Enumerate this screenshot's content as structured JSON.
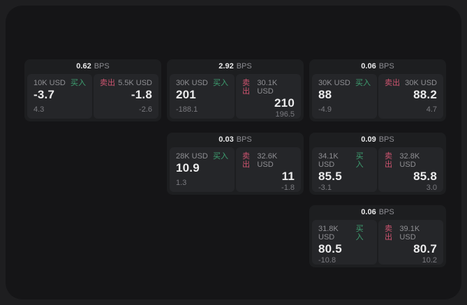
{
  "page": {
    "bg_outer": "#1e1e20",
    "bg_surface": "#151517"
  },
  "colors": {
    "card_bg": "#1d1e20",
    "panel_bg": "#252629",
    "text_primary": "#ebebec",
    "text_muted": "#8f8f93",
    "text_sub": "#7b7b80",
    "buy_green": "#3ea071",
    "sell_red": "#ce5470"
  },
  "labels": {
    "bps_suffix": "BPS",
    "buy": "买入",
    "sell": "卖出"
  },
  "cards": [
    {
      "col": 1,
      "row": 1,
      "bps": "0.62",
      "buy": {
        "size": "10K USD",
        "value": "-3.7",
        "sub": "4.3"
      },
      "sell": {
        "size": "5.5K USD",
        "value": "-1.8",
        "sub": "-2.6"
      }
    },
    {
      "col": 2,
      "row": 1,
      "bps": "2.92",
      "buy": {
        "size": "30K USD",
        "value": "201",
        "sub": "-188.1"
      },
      "sell": {
        "size": "30.1K USD",
        "value": "210",
        "sub": "196.5"
      }
    },
    {
      "col": 3,
      "row": 1,
      "bps": "0.06",
      "buy": {
        "size": "30K USD",
        "value": "88",
        "sub": "-4.9"
      },
      "sell": {
        "size": "30K USD",
        "value": "88.2",
        "sub": "4.7"
      }
    },
    {
      "col": 2,
      "row": 2,
      "bps": "0.03",
      "buy": {
        "size": "28K USD",
        "value": "10.9",
        "sub": "1.3"
      },
      "sell": {
        "size": "32.6K USD",
        "value": "11",
        "sub": "-1.8"
      }
    },
    {
      "col": 3,
      "row": 2,
      "bps": "0.09",
      "buy": {
        "size": "34.1K USD",
        "value": "85.5",
        "sub": "-3.1"
      },
      "sell": {
        "size": "32.8K USD",
        "value": "85.8",
        "sub": "3.0"
      }
    },
    {
      "col": 3,
      "row": 3,
      "bps": "0.06",
      "buy": {
        "size": "31.8K USD",
        "value": "80.5",
        "sub": "-10.8"
      },
      "sell": {
        "size": "39.1K USD",
        "value": "80.7",
        "sub": "10.2"
      }
    }
  ]
}
